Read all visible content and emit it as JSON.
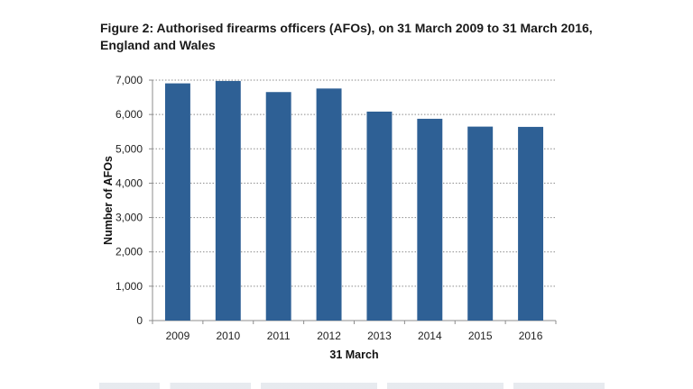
{
  "figure": {
    "title_line1": "Figure 2: Authorised firearms officers (AFOs), on 31 March 2009 to 31 March 2016,",
    "title_line2": "England and Wales"
  },
  "chart_data": {
    "type": "bar",
    "title": "Figure 2: Authorised firearms officers (AFOs), on 31 March 2009 to 31 March 2016, England and Wales",
    "categories": [
      "2009",
      "2010",
      "2011",
      "2012",
      "2013",
      "2014",
      "2015",
      "2016"
    ],
    "values": [
      6906,
      6976,
      6653,
      6756,
      6084,
      5875,
      5647,
      5639
    ],
    "xlabel": "31 March",
    "ylabel": "Number of AFOs",
    "ylim": [
      0,
      7000
    ],
    "yticks": [
      0,
      1000,
      2000,
      3000,
      4000,
      5000,
      6000,
      7000
    ],
    "ytick_labels": [
      "0",
      "1,000",
      "2,000",
      "3,000",
      "4,000",
      "5,000",
      "6,000",
      "7,000"
    ],
    "grid": true,
    "bar_color": "#2e6095"
  }
}
